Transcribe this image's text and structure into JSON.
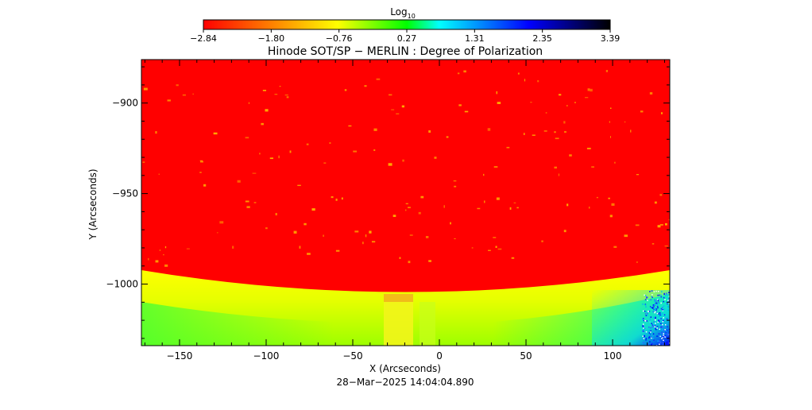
{
  "chart_data": {
    "type": "heatmap",
    "title": "Hinode SOT/SP − MERLIN : Degree of Polarization",
    "xlabel": "X (Arcseconds)",
    "ylabel": "Y (Arcseconds)",
    "timestamp": "28−Mar−2025 14:04:04.890",
    "colorbar": {
      "label_main": "Log",
      "label_sub": "10",
      "min": -2.84,
      "max": 3.39,
      "ticks": [
        "−2.84",
        "−1.80",
        "−0.76",
        "0.27",
        "1.31",
        "2.35",
        "3.39"
      ],
      "colormap": [
        "#ff0000",
        "#ff9900",
        "#ffff00",
        "#00ff00",
        "#00ffff",
        "#0000ff",
        "#000000"
      ]
    },
    "xlim": [
      -172,
      133
    ],
    "ylim": [
      -1034,
      -876
    ],
    "x_ticks": [
      -150,
      -100,
      -50,
      0,
      50,
      100
    ],
    "x_tick_labels": [
      "−150",
      "−100",
      "−50",
      "0",
      "50",
      "100"
    ],
    "y_ticks": [
      -900,
      -950,
      -1000
    ],
    "y_tick_labels": [
      "−900",
      "−950",
      "−1000"
    ],
    "regions": {
      "on_disk": {
        "value_log10": -2.84,
        "color": "#ff0000"
      },
      "limb_band": {
        "color_light": "#ffff00",
        "color_mid": "#aaff00",
        "color_off": "#00e070"
      },
      "limb_edge_y": {
        "at_x_min": -988,
        "at_x_center": -1001,
        "at_x_max": -988
      },
      "strip_x_range": [
        -32,
        -14
      ]
    },
    "background_color": "#ff0000"
  }
}
